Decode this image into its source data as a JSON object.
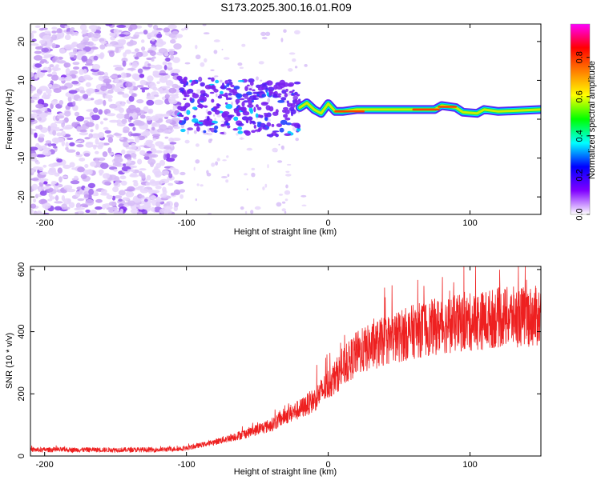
{
  "title": "S173.2025.300.16.01.R09",
  "chart_data": [
    {
      "type": "heatmap",
      "name": "spectrogram",
      "xlabel": "Height of straight line (km)",
      "ylabel": "Frequency (Hz)",
      "xlim": [
        -210,
        150
      ],
      "ylim": [
        -24.5,
        24.5
      ],
      "xticks": [
        -200,
        -100,
        0,
        100
      ],
      "yticks": [
        -20,
        -10,
        0,
        10,
        20
      ],
      "colorbar": {
        "label": "Normalized spectral amplitude",
        "range": [
          0,
          0.97
        ],
        "ticks": [
          0.0,
          0.2,
          0.4,
          0.6,
          0.8
        ],
        "tick_labels": [
          "0.0",
          "0.2",
          "0.4",
          "0.6",
          "0.8"
        ],
        "colors": [
          "#ffffff",
          "#8000ff",
          "#0000ff",
          "#00ffff",
          "#00ff00",
          "#ffff00",
          "#ff8000",
          "#ff0000",
          "#ff00ff"
        ]
      },
      "noise_region_x": [
        -210,
        -105
      ],
      "transition_region_x": [
        -105,
        -20
      ],
      "signal_track": [
        {
          "x": -20,
          "f": 3.0
        },
        {
          "x": -15,
          "f": 4.2
        },
        {
          "x": -10,
          "f": 2.5
        },
        {
          "x": -5,
          "f": 1.5
        },
        {
          "x": 0,
          "f": 4.0
        },
        {
          "x": 5,
          "f": 2.0
        },
        {
          "x": 10,
          "f": 2.0
        },
        {
          "x": 20,
          "f": 2.5
        },
        {
          "x": 40,
          "f": 2.5
        },
        {
          "x": 60,
          "f": 2.5
        },
        {
          "x": 75,
          "f": 2.5
        },
        {
          "x": 80,
          "f": 3.5
        },
        {
          "x": 90,
          "f": 3.0
        },
        {
          "x": 95,
          "f": 1.8
        },
        {
          "x": 105,
          "f": 1.5
        },
        {
          "x": 110,
          "f": 2.5
        },
        {
          "x": 120,
          "f": 2.0
        },
        {
          "x": 150,
          "f": 2.5
        }
      ]
    },
    {
      "type": "line",
      "name": "snr",
      "xlabel": "Height of straight line (km)",
      "ylabel": "SNR (10 * v/v)",
      "xlim": [
        -210,
        150
      ],
      "ylim": [
        0,
        610
      ],
      "xticks": [
        -200,
        -100,
        0,
        100
      ],
      "yticks": [
        0,
        200,
        400,
        600
      ],
      "color": "#ee2020",
      "trend": {
        "x": [
          -210,
          -150,
          -120,
          -100,
          -80,
          -60,
          -40,
          -30,
          -20,
          -10,
          0,
          10,
          20,
          40,
          60,
          80,
          100,
          120,
          150
        ],
        "y": [
          20,
          20,
          20,
          25,
          45,
          70,
          100,
          130,
          150,
          180,
          230,
          280,
          330,
          370,
          400,
          420,
          430,
          445,
          450
        ]
      }
    }
  ]
}
